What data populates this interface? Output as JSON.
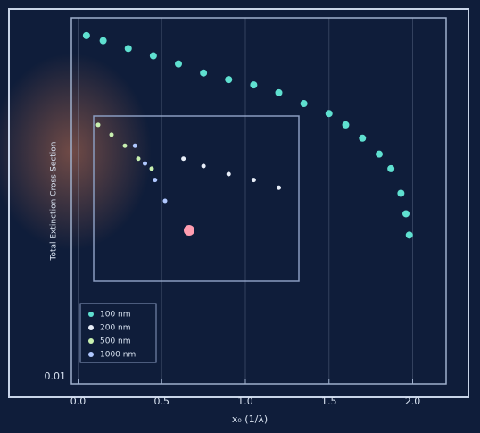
{
  "chart_data": {
    "type": "scatter",
    "x_label": "x₀ (1/λ)",
    "y_label": "Total Extinction Cross-Section",
    "xlim": [
      -0.04,
      2.2
    ],
    "xticks": [
      {
        "value": 0,
        "label": "0.0"
      },
      0.5,
      {
        "value": 1,
        "label": "1.0"
      },
      1.5,
      {
        "value": 2,
        "label": "2.0"
      }
    ],
    "ylim": [
      0.01,
      1
    ],
    "yticks": [
      0.01
    ],
    "log_y": true,
    "grid": true,
    "legend": "lower-left",
    "series": [
      {
        "name": "100 nm",
        "color": "#5fe0d0",
        "x": [
          0.05,
          0.15,
          0.3,
          0.45,
          0.6,
          0.75,
          0.9,
          1.05,
          1.2,
          1.35,
          1.5,
          1.6,
          1.7,
          1.8,
          1.87,
          1.93,
          1.96,
          1.98
        ],
        "values": [
          0.8,
          0.75,
          0.68,
          0.62,
          0.56,
          0.5,
          0.46,
          0.43,
          0.39,
          0.34,
          0.3,
          0.26,
          0.22,
          0.18,
          0.15,
          0.11,
          0.085,
          0.065
        ]
      },
      {
        "name": "200 nm",
        "color": "#e8eef8",
        "x": [
          0.63,
          0.75,
          0.9,
          1.05,
          1.2
        ],
        "values": [
          0.17,
          0.155,
          0.14,
          0.13,
          0.118
        ]
      },
      {
        "name": "500 nm",
        "color": "#c8f0b0",
        "x": [
          0.12,
          0.2,
          0.28,
          0.36,
          0.44
        ],
        "values": [
          0.26,
          0.23,
          0.2,
          0.17,
          0.15
        ]
      },
      {
        "name": "1000 nm",
        "color": "#b0c8ff",
        "x": [
          0.34,
          0.4,
          0.46,
          0.52
        ],
        "values": [
          0.2,
          0.16,
          0.13,
          0.1
        ]
      }
    ]
  }
}
